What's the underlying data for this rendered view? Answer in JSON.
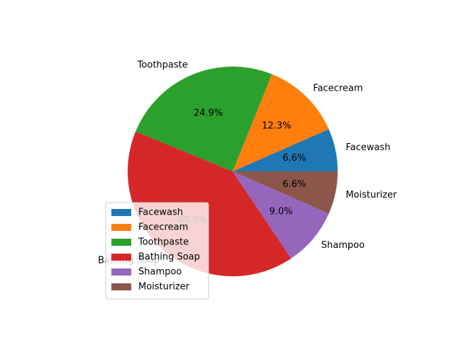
{
  "chart_data": {
    "type": "pie",
    "categories": [
      "Facewash",
      "Facecream",
      "Toothpaste",
      "Bathing Soap",
      "Shampoo",
      "Moisturizer"
    ],
    "values": [
      6.6,
      12.3,
      24.9,
      40.6,
      9.0,
      6.6
    ],
    "percent_labels": [
      "6.6%",
      "12.3%",
      "24.9%",
      "40.6%",
      "9.0%",
      "6.6%"
    ],
    "colors": [
      "#1f77b4",
      "#ff7f0e",
      "#2ca02c",
      "#d62728",
      "#9467bd",
      "#8c564b"
    ],
    "start_angle_deg": 0,
    "direction": "counterclockwise",
    "legend": {
      "position": "lower-left",
      "entries": [
        "Facewash",
        "Facecream",
        "Toothpaste",
        "Bathing Soap",
        "Shampoo",
        "Moisturizer"
      ]
    }
  }
}
